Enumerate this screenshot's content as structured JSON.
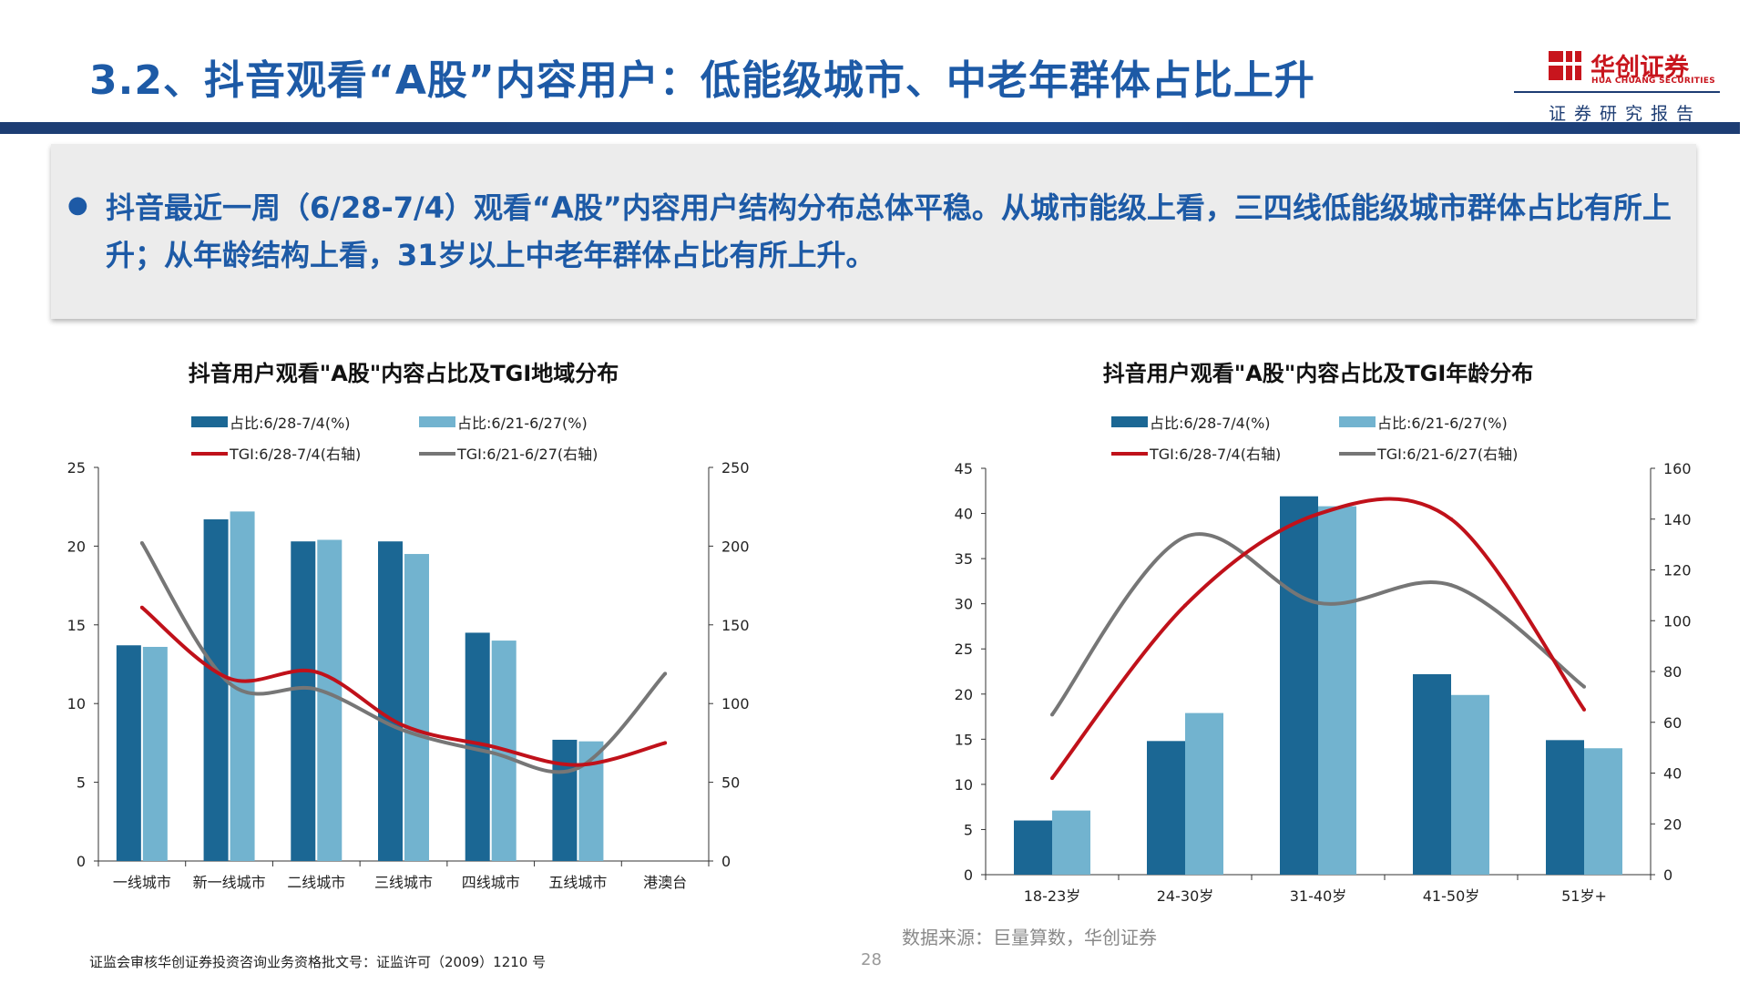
{
  "header": {
    "title": "3.2、抖音观看“A股”内容用户：低能级城市、中老年群体占比上升"
  },
  "logo": {
    "name": "华创证券",
    "en": "HUA CHUANG SECURITIES",
    "sub": "证券研究报告"
  },
  "summary": {
    "text": "抖音最近一周（6/28-7/4）观看“A股”内容用户结构分布总体平稳。从城市能级上看，三四线低能级城市群体占比有所上升；从年龄结构上看，31岁以上中老年群体占比有所上升。"
  },
  "colors": {
    "dark_bar": "#1b6794",
    "light_bar": "#72b3cf",
    "red_line": "#c0111a",
    "gray_line": "#767676",
    "title_blue": "#1d5aa6",
    "navy": "#1d3d73"
  },
  "chart_data": [
    {
      "type": "bar",
      "title": "抖音用户观看\"A股\"内容占比及TGI地域分布",
      "categories": [
        "一线城市",
        "新一线城市",
        "二线城市",
        "三线城市",
        "四线城市",
        "五线城市",
        "港澳台"
      ],
      "series": [
        {
          "name": "占比:6/28-7/4(%)",
          "type": "bar",
          "axis": "left",
          "values": [
            13.7,
            21.7,
            20.3,
            20.3,
            14.5,
            7.7,
            0
          ]
        },
        {
          "name": "占比:6/21-6/27(%)",
          "type": "bar",
          "axis": "left",
          "values": [
            13.6,
            22.2,
            20.4,
            19.5,
            14.0,
            7.6,
            0
          ]
        },
        {
          "name": "TGI:6/28-7/4(右轴)",
          "type": "line",
          "axis": "right",
          "values": [
            161,
            116,
            120,
            86,
            73,
            61,
            75
          ]
        },
        {
          "name": "TGI:6/21-6/27(右轴)",
          "type": "line",
          "axis": "right",
          "values": [
            202,
            113,
            109,
            83,
            69,
            59,
            119
          ]
        }
      ],
      "yticks_left": [
        0,
        5,
        10,
        15,
        20,
        25
      ],
      "yticks_right": [
        0,
        50,
        100,
        150,
        200,
        250
      ],
      "ylim_left": [
        0,
        25
      ],
      "ylim_right": [
        0,
        250
      ],
      "legend": "top"
    },
    {
      "type": "bar",
      "title": "抖音用户观看\"A股\"内容占比及TGI年龄分布",
      "categories": [
        "18-23岁",
        "24-30岁",
        "31-40岁",
        "41-50岁",
        "51岁+"
      ],
      "series": [
        {
          "name": "占比:6/28-7/4(%)",
          "type": "bar",
          "axis": "left",
          "values": [
            6.0,
            14.8,
            41.9,
            22.2,
            14.9
          ]
        },
        {
          "name": "占比:6/21-6/27(%)",
          "type": "bar",
          "axis": "left",
          "values": [
            7.1,
            17.9,
            40.8,
            19.9,
            14.0
          ]
        },
        {
          "name": "TGI:6/28-7/4(右轴)",
          "type": "line",
          "axis": "right",
          "values": [
            38,
            106,
            142,
            140,
            65
          ]
        },
        {
          "name": "TGI:6/21-6/27(右轴)",
          "type": "line",
          "axis": "right",
          "values": [
            63,
            133,
            107,
            114,
            74
          ]
        }
      ],
      "yticks_left": [
        0,
        5,
        10,
        15,
        20,
        25,
        30,
        35,
        40,
        45
      ],
      "yticks_right": [
        0,
        20,
        40,
        60,
        80,
        100,
        120,
        140,
        160
      ],
      "ylim_left": [
        0,
        45
      ],
      "ylim_right": [
        0,
        160
      ],
      "legend": "top"
    }
  ],
  "source": "数据来源：巨量算数，华创证券",
  "footer": {
    "note": "证监会审核华创证券投资咨询业务资格批文号：证监许可（2009）1210 号",
    "page": "28"
  }
}
